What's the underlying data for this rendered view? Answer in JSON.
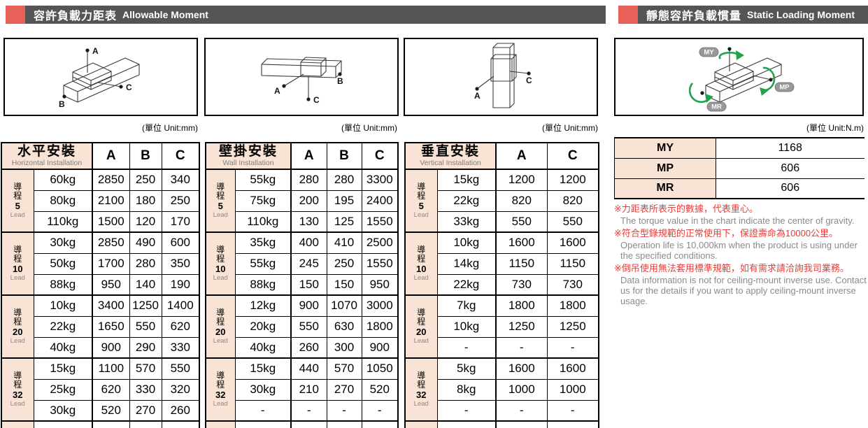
{
  "headers": {
    "left": {
      "zh": "容許負載力距表",
      "en": "Allowable Moment"
    },
    "right": {
      "zh": "靜態容許負載慣量",
      "en": "Static Loading Moment"
    }
  },
  "units": {
    "mm": "(單位 Unit:mm)",
    "nm": "(單位 Unit:N.m)"
  },
  "moment_tables": [
    {
      "id": "horizontal",
      "title_zh": "水平安裝",
      "title_en": "Horizontal Installation",
      "columns": [
        "A",
        "B",
        "C"
      ],
      "groups": [
        {
          "lead_zh": "導程",
          "lead_no": "5",
          "lead_en": "Lead",
          "rows": [
            [
              "60kg",
              "2850",
              "250",
              "340"
            ],
            [
              "80kg",
              "2100",
              "180",
              "250"
            ],
            [
              "110kg",
              "1500",
              "120",
              "170"
            ]
          ]
        },
        {
          "lead_zh": "導程",
          "lead_no": "10",
          "lead_en": "Lead",
          "rows": [
            [
              "30kg",
              "2850",
              "490",
              "600"
            ],
            [
              "50kg",
              "1700",
              "280",
              "350"
            ],
            [
              "88kg",
              "950",
              "140",
              "190"
            ]
          ]
        },
        {
          "lead_zh": "導程",
          "lead_no": "20",
          "lead_en": "Lead",
          "rows": [
            [
              "10kg",
              "3400",
              "1250",
              "1400"
            ],
            [
              "22kg",
              "1650",
              "550",
              "620"
            ],
            [
              "40kg",
              "900",
              "290",
              "330"
            ]
          ]
        },
        {
          "lead_zh": "導程",
          "lead_no": "32",
          "lead_en": "Lead",
          "rows": [
            [
              "15kg",
              "1100",
              "570",
              "550"
            ],
            [
              "25kg",
              "620",
              "330",
              "320"
            ],
            [
              "30kg",
              "520",
              "270",
              "260"
            ]
          ]
        }
      ]
    },
    {
      "id": "wall",
      "title_zh": "壁掛安裝",
      "title_en": "Wall Installation",
      "columns": [
        "A",
        "B",
        "C"
      ],
      "groups": [
        {
          "lead_zh": "導程",
          "lead_no": "5",
          "lead_en": "Lead",
          "rows": [
            [
              "55kg",
              "280",
              "280",
              "3300"
            ],
            [
              "75kg",
              "200",
              "195",
              "2400"
            ],
            [
              "110kg",
              "130",
              "125",
              "1550"
            ]
          ]
        },
        {
          "lead_zh": "導程",
          "lead_no": "10",
          "lead_en": "Lead",
          "rows": [
            [
              "35kg",
              "400",
              "410",
              "2500"
            ],
            [
              "55kg",
              "245",
              "250",
              "1550"
            ],
            [
              "88kg",
              "150",
              "150",
              "950"
            ]
          ]
        },
        {
          "lead_zh": "導程",
          "lead_no": "20",
          "lead_en": "Lead",
          "rows": [
            [
              "12kg",
              "900",
              "1070",
              "3000"
            ],
            [
              "20kg",
              "550",
              "630",
              "1800"
            ],
            [
              "40kg",
              "260",
              "300",
              "900"
            ]
          ]
        },
        {
          "lead_zh": "導程",
          "lead_no": "32",
          "lead_en": "Lead",
          "rows": [
            [
              "15kg",
              "440",
              "570",
              "1050"
            ],
            [
              "30kg",
              "210",
              "270",
              "520"
            ],
            [
              "-",
              "-",
              "-",
              "-"
            ]
          ]
        }
      ]
    },
    {
      "id": "vertical",
      "title_zh": "垂直安裝",
      "title_en": "Vertical Installation",
      "columns": [
        "A",
        "C"
      ],
      "groups": [
        {
          "lead_zh": "導程",
          "lead_no": "5",
          "lead_en": "Lead",
          "rows": [
            [
              "15kg",
              "1200",
              "1200"
            ],
            [
              "22kg",
              "820",
              "820"
            ],
            [
              "33kg",
              "550",
              "550"
            ]
          ]
        },
        {
          "lead_zh": "導程",
          "lead_no": "10",
          "lead_en": "Lead",
          "rows": [
            [
              "10kg",
              "1600",
              "1600"
            ],
            [
              "14kg",
              "1150",
              "1150"
            ],
            [
              "22kg",
              "730",
              "730"
            ]
          ]
        },
        {
          "lead_zh": "導程",
          "lead_no": "20",
          "lead_en": "Lead",
          "rows": [
            [
              "7kg",
              "1800",
              "1800"
            ],
            [
              "10kg",
              "1250",
              "1250"
            ],
            [
              "-",
              "-",
              "-"
            ]
          ]
        },
        {
          "lead_zh": "導程",
          "lead_no": "32",
          "lead_en": "Lead",
          "rows": [
            [
              "5kg",
              "1600",
              "1600"
            ],
            [
              "8kg",
              "1000",
              "1000"
            ],
            [
              "-",
              "-",
              "-"
            ]
          ]
        }
      ]
    }
  ],
  "static_table": {
    "rows": [
      {
        "label": "MY",
        "value": "1168"
      },
      {
        "label": "MP",
        "value": "606"
      },
      {
        "label": "MR",
        "value": "606"
      }
    ]
  },
  "notes": [
    {
      "zh": "※力距表所表示的數據，代表重心。",
      "en": "The torque value in the chart indicate the center of gravity."
    },
    {
      "zh": "※符合型錄規範的正常使用下，保證壽命為10000公里。",
      "en": "Operation life is 10,000km when the product is using under the specified conditions."
    },
    {
      "zh": "※倒吊使用無法套用標準規範，如有需求請洽詢我司業務。",
      "en": "Data information is not for ceiling-mount inverse use. Contact us for the details if you want to apply ceiling-mount inverse usage."
    }
  ],
  "diagrams": {
    "horizontal": {
      "a": "A",
      "b": "B",
      "c": "C"
    },
    "wall": {
      "a": "A",
      "b": "B",
      "c": "C"
    },
    "vertical": {
      "a": "A",
      "c": "C"
    },
    "static": {
      "my": "MY",
      "mp": "MP",
      "mr": "MR"
    }
  },
  "colors": {
    "accent_red": "#E86159",
    "header_bar": "#565456",
    "cell_pink": "#F8E3D5",
    "note_red": "#E73C37",
    "note_gray": "#8A8A8A",
    "arrow_green": "#21A24B"
  }
}
